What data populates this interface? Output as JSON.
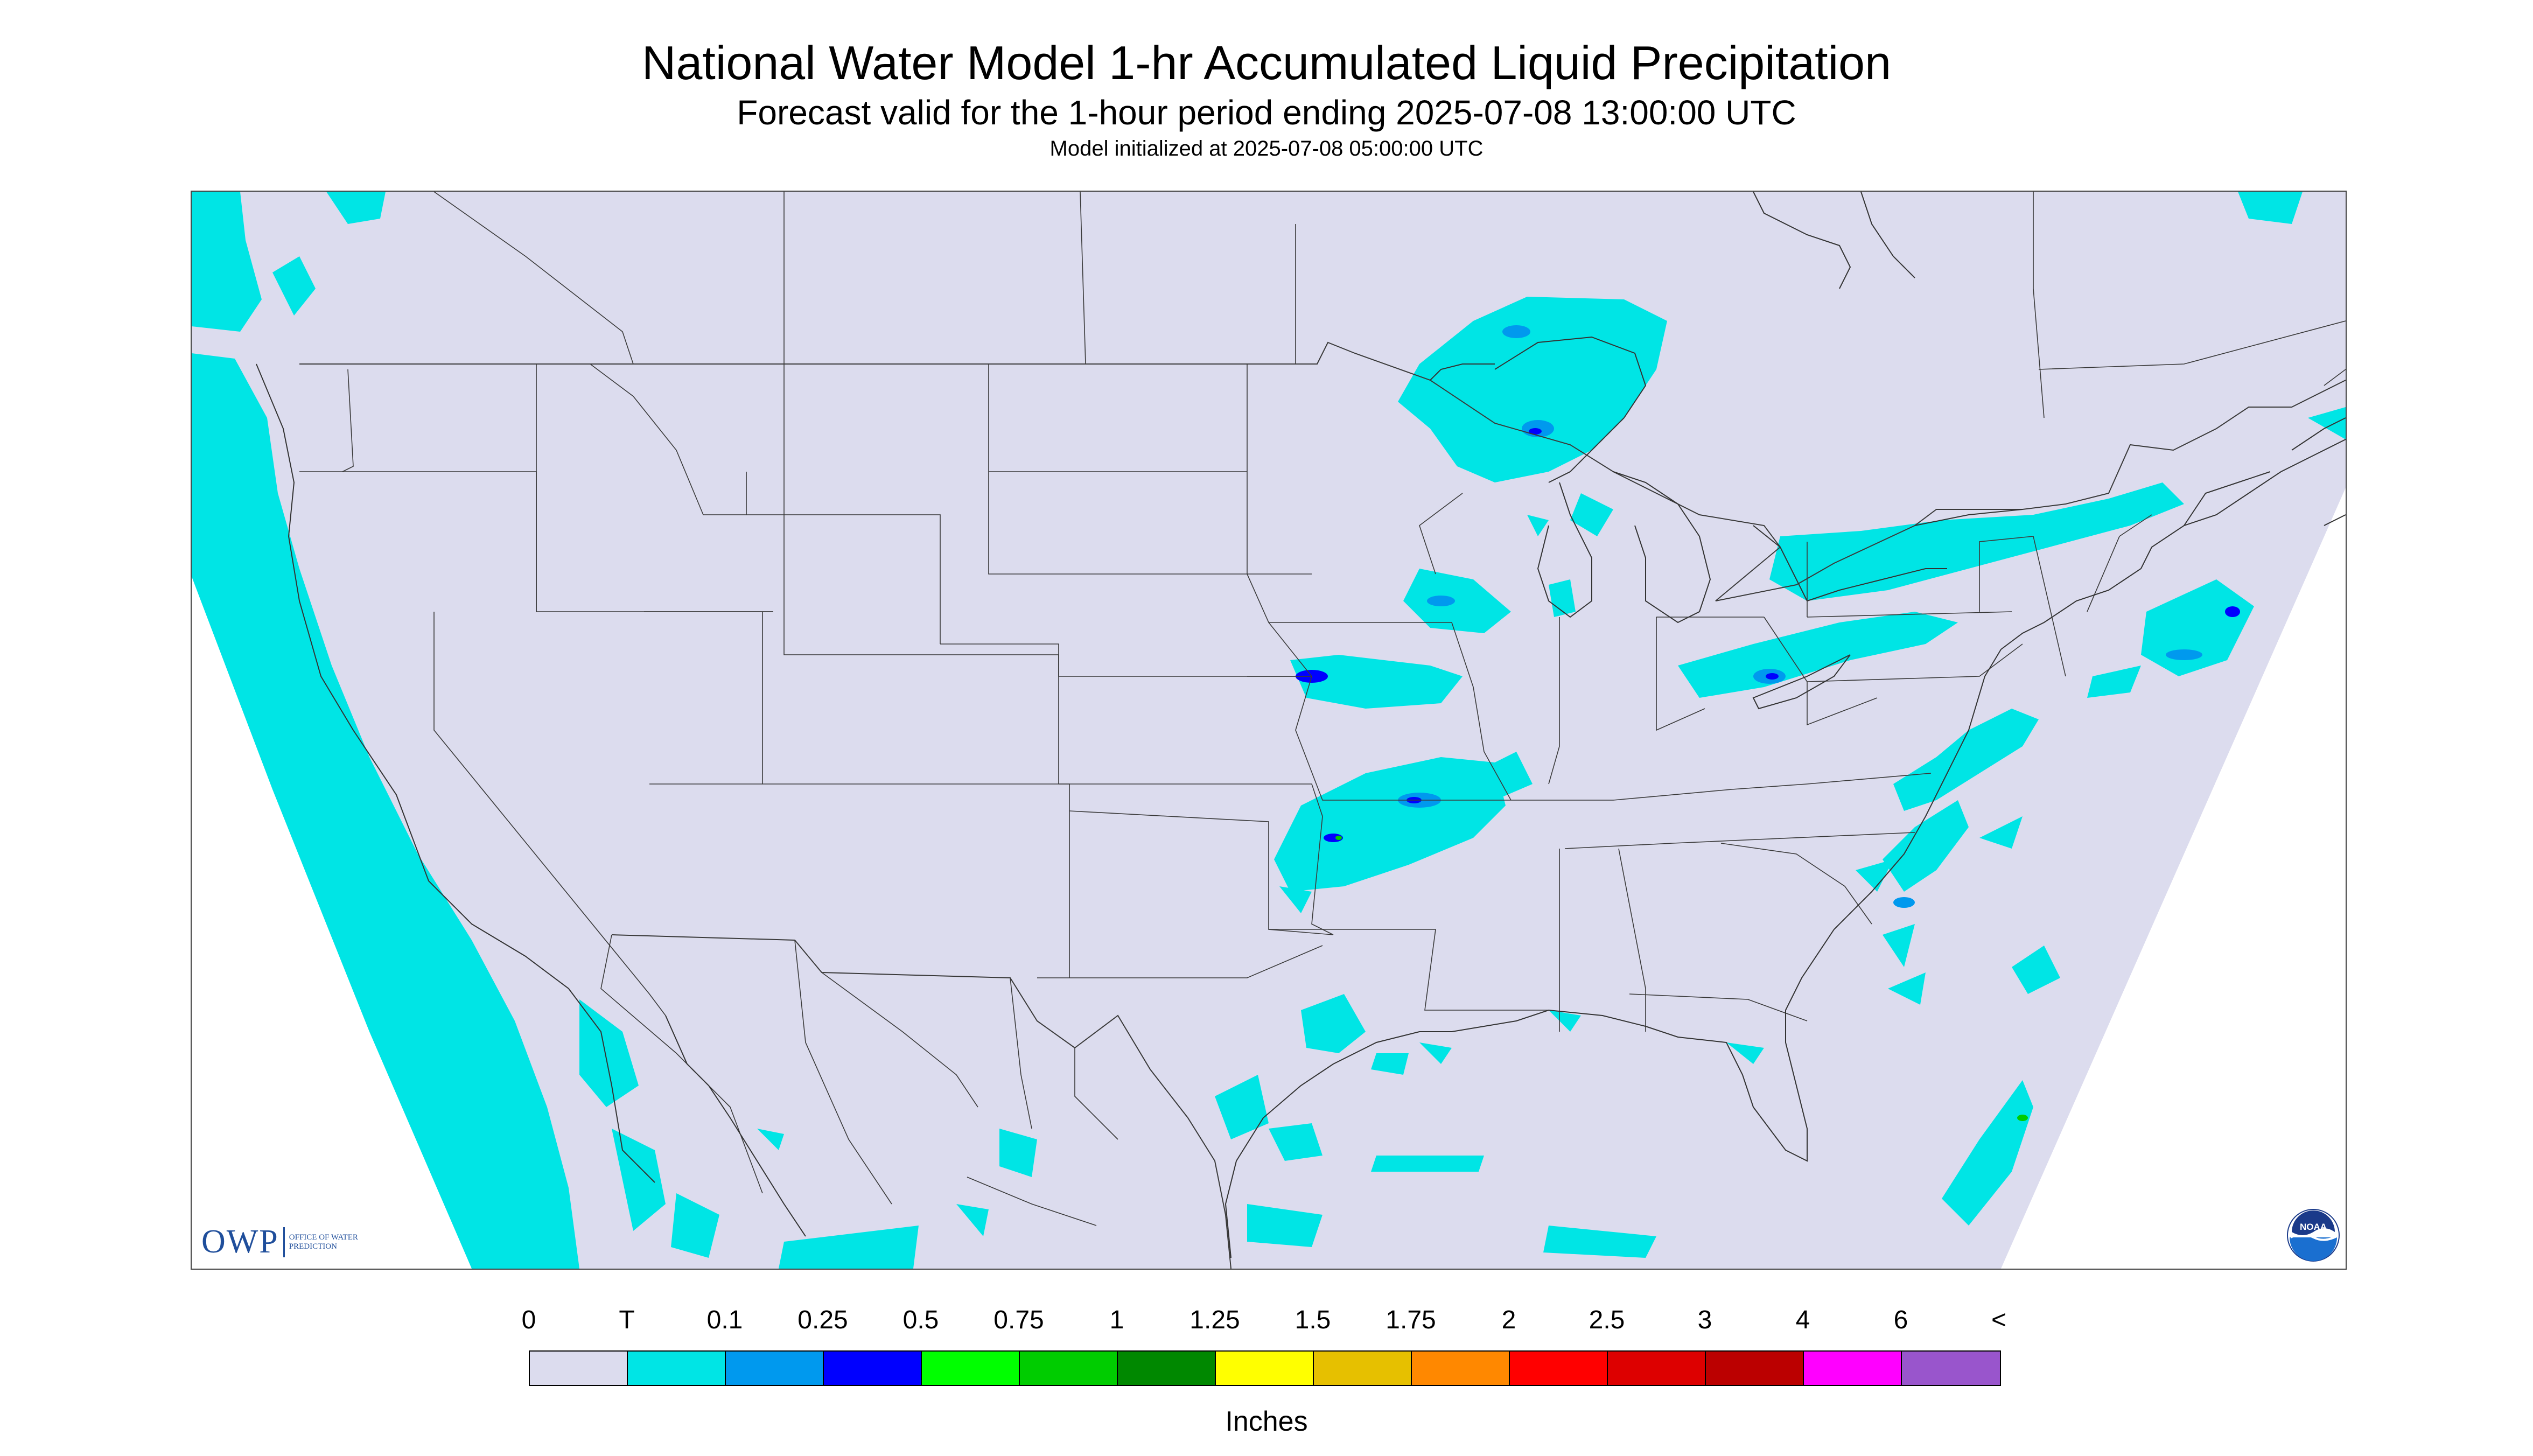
{
  "header": {
    "title": "National Water Model 1-hr Accumulated Liquid Precipitation",
    "subtitle": "Forecast valid for the 1-hour period ending 2025-07-08 13:00:00 UTC",
    "init": "Model initialized at 2025-07-08 05:00:00 UTC"
  },
  "map": {
    "background_color": "#dcdcee",
    "outside_domain_color": "#ffffff",
    "border_color": "#3a3a3a",
    "precip_colors": {
      "trace": "#00e5e5",
      "light": "#0099ee",
      "moderate": "#0000ff",
      "heavy": "#00cc00"
    },
    "precip_areas": [
      {
        "region": "Pacific coast / offshore",
        "category": "trace"
      },
      {
        "region": "Lake Superior / Upper Michigan",
        "category": "trace"
      },
      {
        "region": "Great Lakes to Northeast",
        "category": "trace"
      },
      {
        "region": "Iowa / Missouri / Arkansas",
        "category": "trace"
      },
      {
        "region": "Gulf Coast",
        "category": "trace"
      },
      {
        "region": "Atlantic offshore",
        "category": "trace"
      },
      {
        "region": "Northern Mexico",
        "category": "trace"
      }
    ]
  },
  "logos": {
    "owp": {
      "letters": "OWP",
      "name": "Office of Water Prediction"
    },
    "noaa": {
      "text": "NOAA",
      "icon": "noaa-logo-icon"
    }
  },
  "legend": {
    "labels": [
      "0",
      "T",
      "0.1",
      "0.25",
      "0.5",
      "0.75",
      "1",
      "1.25",
      "1.5",
      "1.75",
      "2",
      "2.5",
      "3",
      "4",
      "6",
      "<"
    ],
    "colors": [
      "#dcdcee",
      "#00e5e5",
      "#0099ee",
      "#0000ff",
      "#00ff00",
      "#00cc00",
      "#008800",
      "#ffff00",
      "#e6c000",
      "#ff8800",
      "#ff0000",
      "#dd0000",
      "#bb0000",
      "#ff00ff",
      "#9955cc"
    ],
    "units": "Inches"
  }
}
